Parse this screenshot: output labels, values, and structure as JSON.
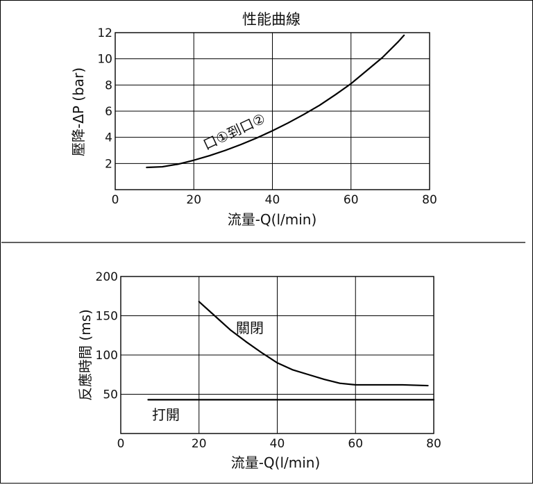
{
  "chart_data": [
    {
      "type": "line",
      "title": "性能曲線",
      "xlabel": "流量-Q(l/min)",
      "ylabel": "壓降-ΔP (bar)",
      "xlim": [
        0,
        80
      ],
      "ylim": [
        0,
        12
      ],
      "xticks": [
        "0",
        "20",
        "40",
        "60",
        "80"
      ],
      "yticks": [
        "2",
        "4",
        "6",
        "8",
        "10",
        "12"
      ],
      "grid": true,
      "series": [
        {
          "name": "口①到口②",
          "x": [
            8,
            12,
            16,
            20,
            24,
            28,
            32,
            36,
            40,
            44,
            48,
            52,
            56,
            60,
            64,
            68,
            72,
            73.5
          ],
          "y": [
            1.7,
            1.75,
            1.95,
            2.25,
            2.6,
            3.0,
            3.45,
            3.95,
            4.5,
            5.1,
            5.75,
            6.45,
            7.25,
            8.1,
            9.1,
            10.1,
            11.3,
            11.8
          ]
        }
      ]
    },
    {
      "type": "line",
      "title": "",
      "xlabel": "流量-Q(l/min)",
      "ylabel": "反應時間 (ms)",
      "xlim": [
        0,
        80
      ],
      "ylim": [
        0,
        200
      ],
      "xticks": [
        "0",
        "20",
        "40",
        "60",
        "80"
      ],
      "yticks": [
        "50",
        "100",
        "150",
        "200"
      ],
      "grid": true,
      "series": [
        {
          "name": "關閉",
          "x": [
            20,
            24,
            28,
            32,
            36,
            40,
            44,
            48,
            52,
            56,
            60,
            66,
            72,
            78.5
          ],
          "y": [
            168,
            150,
            132,
            117,
            103,
            90,
            81,
            75,
            69,
            64,
            62,
            62,
            62,
            61
          ]
        },
        {
          "name": "打開",
          "x": [
            7,
            80
          ],
          "y": [
            43,
            43
          ]
        }
      ]
    }
  ]
}
